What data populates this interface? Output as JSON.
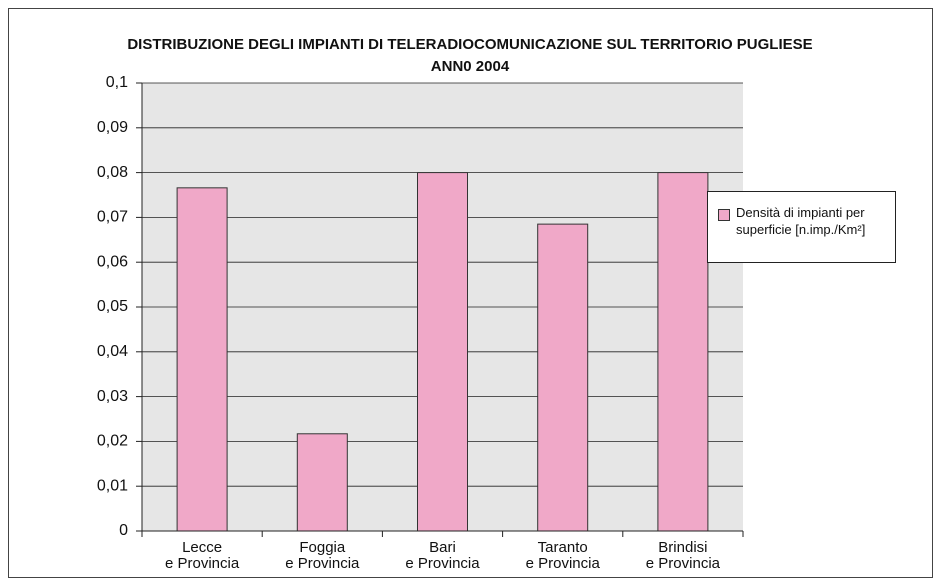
{
  "chart_data": {
    "type": "bar",
    "title": "DISTRIBUZIONE DEGLI IMPIANTI DI TELERADIOCOMUNICAZIONE SUL TERRITORIO PUGLIESE",
    "subtitle": "ANN0 2004",
    "categories": [
      [
        "Lecce",
        "e Provincia"
      ],
      [
        "Foggia",
        "e Provincia"
      ],
      [
        "Bari",
        "e Provincia"
      ],
      [
        "Taranto",
        "e Provincia"
      ],
      [
        "Brindisi",
        "e Provincia"
      ]
    ],
    "series": [
      {
        "name": "Densità di impianti per superficie [n.imp./Km²]",
        "color": "#f0a8c8",
        "values": [
          0.0766,
          0.0217,
          0.08,
          0.0685,
          0.08
        ]
      }
    ],
    "ylim": [
      0,
      0.1
    ],
    "yticks": [
      0,
      {
        "value": 0.01,
        "label": "0,01"
      },
      {
        "value": 0.02,
        "label": "0,02"
      },
      {
        "value": 0.03,
        "label": "0,03"
      },
      {
        "value": 0.04,
        "label": "0,04"
      },
      {
        "value": 0.05,
        "label": "0,05"
      },
      {
        "value": 0.06,
        "label": "0,06"
      },
      {
        "value": 0.07,
        "label": "0,07"
      },
      {
        "value": 0.08,
        "label": "0,08"
      },
      {
        "value": 0.09,
        "label": "0,09"
      },
      {
        "value": 0.1,
        "label": "0,1"
      }
    ],
    "grid": true,
    "legend": "right"
  }
}
